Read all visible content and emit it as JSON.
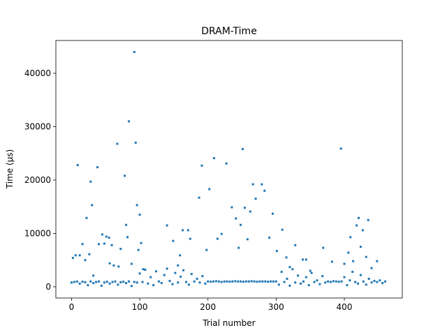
{
  "chart_data": {
    "type": "scatter",
    "title": "DRAM-Time",
    "x_label": "Trial number",
    "y_label": "Time (µs)",
    "color": "#1f77b4",
    "xlim": [
      -23,
      485
    ],
    "ylim": [
      -2100,
      46150
    ],
    "xticks": [
      0,
      100,
      200,
      300,
      400
    ],
    "yticks": [
      0,
      10000,
      20000,
      30000,
      40000
    ],
    "x": [
      2,
      6,
      9,
      12,
      16,
      20,
      22,
      26,
      28,
      30,
      32,
      38,
      40,
      45,
      48,
      51,
      55,
      56,
      59,
      62,
      67,
      69,
      72,
      78,
      80,
      82,
      84,
      88,
      92,
      94,
      96,
      98,
      100,
      102,
      105,
      140,
      149,
      156,
      159,
      163,
      171,
      174,
      187,
      191,
      198,
      202,
      209,
      214,
      220,
      227,
      235,
      241,
      245,
      248,
      251,
      254,
      258,
      262,
      266,
      270,
      279,
      283,
      290,
      295,
      301,
      309,
      315,
      320,
      328,
      339,
      344,
      350,
      369,
      382,
      395,
      400,
      406,
      409,
      413,
      418,
      421,
      424,
      427,
      432,
      435,
      440,
      448,
      0,
      4,
      8,
      12,
      16,
      20,
      24,
      28,
      32,
      36,
      40,
      44,
      48,
      52,
      56,
      60,
      64,
      68,
      72,
      76,
      80,
      84,
      88,
      92,
      96,
      100,
      104,
      108,
      112,
      116,
      120,
      124,
      128,
      132,
      136,
      140,
      144,
      148,
      152,
      156,
      160,
      164,
      168,
      172,
      176,
      180,
      184,
      188,
      192,
      196,
      200,
      204,
      208,
      212,
      216,
      220,
      224,
      228,
      232,
      236,
      240,
      244,
      248,
      252,
      256,
      260,
      264,
      268,
      272,
      276,
      280,
      284,
      288,
      292,
      296,
      300,
      304,
      308,
      312,
      316,
      320,
      324,
      328,
      332,
      336,
      340,
      344,
      348,
      352,
      356,
      360,
      364,
      368,
      372,
      376,
      380,
      384,
      388,
      392,
      396,
      400,
      404,
      408,
      412,
      416,
      420,
      424,
      428,
      432,
      436,
      440,
      444,
      448,
      452,
      456,
      460
    ],
    "values": [
      5400,
      5900,
      22800,
      5900,
      8000,
      5000,
      12900,
      6100,
      19700,
      15300,
      2100,
      22400,
      8000,
      9800,
      8100,
      9400,
      9200,
      4400,
      7800,
      4000,
      26800,
      3800,
      7100,
      20800,
      11600,
      9300,
      31000,
      4300,
      44000,
      27000,
      15300,
      6900,
      13500,
      8200,
      3300,
      11500,
      8600,
      4000,
      5900,
      10600,
      10600,
      9000,
      16700,
      22700,
      6900,
      18300,
      24100,
      9000,
      9900,
      23100,
      14900,
      12800,
      7300,
      11600,
      25800,
      14800,
      8900,
      14100,
      19200,
      16500,
      19200,
      18000,
      9200,
      13700,
      6700,
      10700,
      5500,
      3700,
      7800,
      5100,
      5100,
      3000,
      7300,
      4700,
      25900,
      4300,
      6400,
      9300,
      4800,
      11500,
      12900,
      7500,
      10600,
      5600,
      12500,
      3500,
      4800,
      800,
      900,
      1000,
      600,
      950,
      850,
      300,
      1000,
      700,
      900,
      1000,
      200,
      800,
      950,
      600,
      900,
      1000,
      400,
      850,
      950,
      700,
      1000,
      150,
      900,
      800,
      2500,
      900,
      3200,
      600,
      1800,
      300,
      2900,
      1000,
      700,
      2200,
      3400,
      1100,
      500,
      2600,
      800,
      1900,
      3100,
      900,
      400,
      2400,
      1000,
      1500,
      800,
      2000,
      600,
      1000,
      950,
      1000,
      1050,
      1000,
      900,
      1000,
      1000,
      950,
      1000,
      1050,
      1000,
      1000,
      950,
      1000,
      1000,
      1050,
      1000,
      950,
      1000,
      1000,
      1000,
      950,
      1000,
      1000,
      1000,
      400,
      2800,
      900,
      1500,
      200,
      3300,
      800,
      2100,
      600,
      1000,
      1800,
      300,
      2600,
      900,
      1200,
      500,
      2000,
      800,
      1000,
      900,
      1050,
      1000,
      950,
      1000,
      1800,
      300,
      1200,
      2800,
      900,
      600,
      2200,
      1000,
      400,
      1500,
      800,
      1100,
      900,
      1200,
      700,
      1000
    ]
  }
}
